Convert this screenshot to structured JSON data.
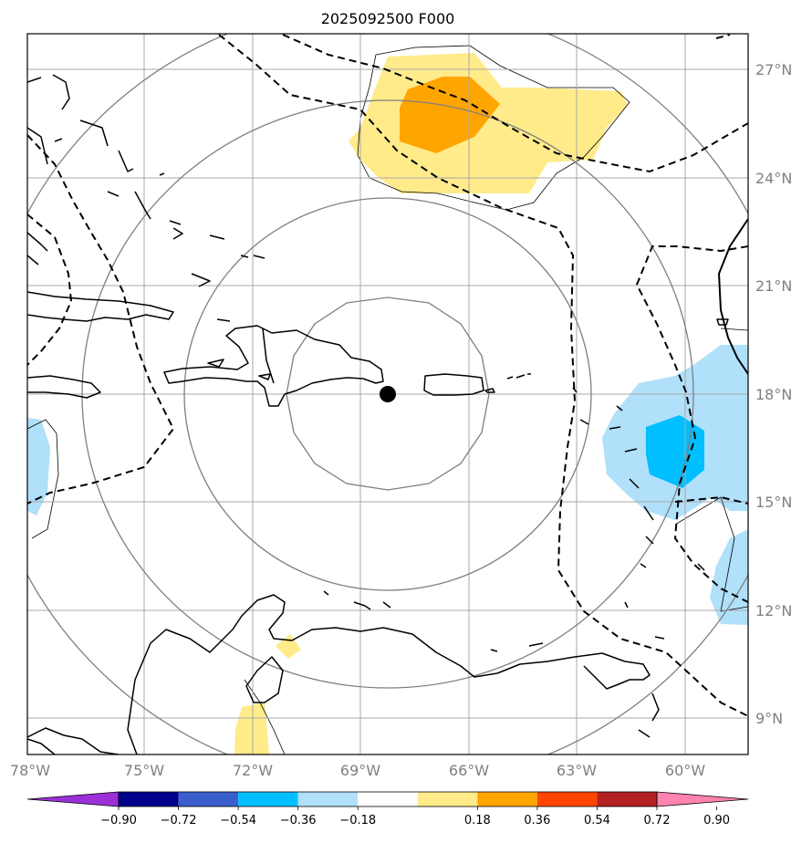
{
  "title": "2025092500 F000",
  "x_ticks": [
    "78°W",
    "75°W",
    "72°W",
    "69°W",
    "66°W",
    "63°W",
    "60°W"
  ],
  "x_tick_values": [
    -78,
    -75,
    -72,
    -69,
    -66,
    -63,
    -60
  ],
  "y_ticks": [
    "27°N",
    "24°N",
    "21°N",
    "18°N",
    "15°N",
    "12°N",
    "9°N"
  ],
  "y_tick_values": [
    27,
    24,
    21,
    18,
    15,
    12,
    9
  ],
  "map_extent": {
    "lon_min": -78,
    "lon_max": -58,
    "lat_min": 8,
    "lat_max": 28
  },
  "center_marker": {
    "lon": -68.8,
    "lat": 18.0
  },
  "range_ring_radii_deg": [
    2.75,
    5.5,
    8.25,
    11.0
  ],
  "colorbar": {
    "labels": [
      "−0.90",
      "−0.72",
      "−0.54",
      "−0.36",
      "−0.18",
      "0.18",
      "0.36",
      "0.54",
      "0.72",
      "0.90"
    ],
    "colors": [
      "#9b30d9",
      "#00008b",
      "#3a5fcd",
      "#00bfff",
      "#b0e0fa",
      "#ffffff",
      "#ffeb8a",
      "#ffa500",
      "#ff4500",
      "#b22222",
      "#ff83b0"
    ]
  },
  "colors": {
    "land_outline": "#000000",
    "grid": "#a0a0a0",
    "ring": "#7f7f7f",
    "positive_low": "#ffeb8a",
    "positive_mid": "#ffa500",
    "negative_low": "#b0e0fa",
    "negative_mid": "#00bfff"
  }
}
